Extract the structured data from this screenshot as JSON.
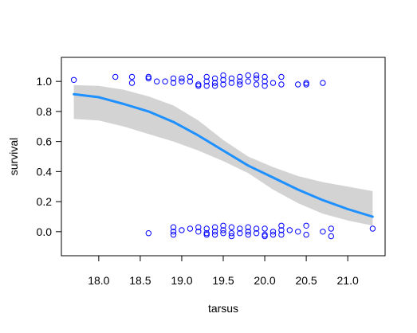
{
  "chart_data": {
    "type": "scatter",
    "xlabel": "tarsus",
    "ylabel": "survival",
    "xlim": [
      17.55,
      21.45
    ],
    "ylim": [
      -0.16,
      1.16
    ],
    "x_ticks": [
      18.0,
      18.5,
      19.0,
      19.5,
      20.0,
      20.5,
      21.0
    ],
    "x_tick_labels": [
      "18.0",
      "18.5",
      "19.0",
      "19.5",
      "20.0",
      "20.5",
      "21.0"
    ],
    "y_ticks": [
      0.0,
      0.2,
      0.4,
      0.6,
      0.8,
      1.0
    ],
    "y_tick_labels": [
      "0.0",
      "0.2",
      "0.4",
      "0.6",
      "0.8",
      "1.0"
    ],
    "grid": false,
    "colors": {
      "points": "#0000ff",
      "fit_line": "#1e90ff",
      "confidence_band": "#d3d3d3",
      "frame": "#000000"
    },
    "series": [
      {
        "kind": "points",
        "points": [
          {
            "x": 17.7,
            "y": 1.01
          },
          {
            "x": 18.2,
            "y": 1.03
          },
          {
            "x": 18.4,
            "y": 1.03
          },
          {
            "x": 18.4,
            "y": 0.99
          },
          {
            "x": 18.6,
            "y": 1.03
          },
          {
            "x": 18.6,
            "y": 1.02
          },
          {
            "x": 18.7,
            "y": 1.0
          },
          {
            "x": 18.8,
            "y": 1.0
          },
          {
            "x": 18.9,
            "y": 1.02
          },
          {
            "x": 18.9,
            "y": 0.99
          },
          {
            "x": 19.0,
            "y": 1.02
          },
          {
            "x": 19.0,
            "y": 1.0
          },
          {
            "x": 19.1,
            "y": 1.03
          },
          {
            "x": 19.1,
            "y": 1.0
          },
          {
            "x": 19.2,
            "y": 0.98
          },
          {
            "x": 19.2,
            "y": 0.97
          },
          {
            "x": 19.3,
            "y": 1.03
          },
          {
            "x": 19.3,
            "y": 1.0
          },
          {
            "x": 19.3,
            "y": 0.97
          },
          {
            "x": 19.4,
            "y": 1.02
          },
          {
            "x": 19.4,
            "y": 0.99
          },
          {
            "x": 19.4,
            "y": 0.97
          },
          {
            "x": 19.5,
            "y": 1.04
          },
          {
            "x": 19.5,
            "y": 1.01
          },
          {
            "x": 19.5,
            "y": 0.98
          },
          {
            "x": 19.6,
            "y": 1.02
          },
          {
            "x": 19.6,
            "y": 0.99
          },
          {
            "x": 19.7,
            "y": 1.03
          },
          {
            "x": 19.7,
            "y": 1.0
          },
          {
            "x": 19.7,
            "y": 0.98
          },
          {
            "x": 19.8,
            "y": 1.04
          },
          {
            "x": 19.8,
            "y": 1.0
          },
          {
            "x": 19.9,
            "y": 1.04
          },
          {
            "x": 19.9,
            "y": 1.02
          },
          {
            "x": 19.9,
            "y": 0.98
          },
          {
            "x": 20.0,
            "y": 1.03
          },
          {
            "x": 20.0,
            "y": 1.0
          },
          {
            "x": 20.0,
            "y": 0.97
          },
          {
            "x": 20.1,
            "y": 0.99
          },
          {
            "x": 20.2,
            "y": 1.03
          },
          {
            "x": 20.2,
            "y": 0.98
          },
          {
            "x": 20.4,
            "y": 0.98
          },
          {
            "x": 20.5,
            "y": 0.99
          },
          {
            "x": 20.5,
            "y": 0.98
          },
          {
            "x": 20.7,
            "y": 0.99
          },
          {
            "x": 18.6,
            "y": -0.01
          },
          {
            "x": 18.9,
            "y": 0.03
          },
          {
            "x": 18.9,
            "y": 0.0
          },
          {
            "x": 18.9,
            "y": -0.02
          },
          {
            "x": 19.0,
            "y": 0.01
          },
          {
            "x": 19.1,
            "y": 0.02
          },
          {
            "x": 19.2,
            "y": 0.03
          },
          {
            "x": 19.2,
            "y": 0.0
          },
          {
            "x": 19.3,
            "y": 0.02
          },
          {
            "x": 19.3,
            "y": -0.01
          },
          {
            "x": 19.3,
            "y": -0.02
          },
          {
            "x": 19.4,
            "y": 0.03
          },
          {
            "x": 19.4,
            "y": 0.0
          },
          {
            "x": 19.4,
            "y": -0.02
          },
          {
            "x": 19.5,
            "y": 0.04
          },
          {
            "x": 19.5,
            "y": 0.01
          },
          {
            "x": 19.5,
            "y": -0.01
          },
          {
            "x": 19.6,
            "y": 0.03
          },
          {
            "x": 19.6,
            "y": -0.01
          },
          {
            "x": 19.6,
            "y": -0.03
          },
          {
            "x": 19.7,
            "y": 0.02
          },
          {
            "x": 19.7,
            "y": -0.01
          },
          {
            "x": 19.8,
            "y": 0.03
          },
          {
            "x": 19.8,
            "y": 0.0
          },
          {
            "x": 19.8,
            "y": -0.02
          },
          {
            "x": 19.9,
            "y": 0.02
          },
          {
            "x": 19.9,
            "y": -0.01
          },
          {
            "x": 20.0,
            "y": 0.02
          },
          {
            "x": 20.0,
            "y": -0.02
          },
          {
            "x": 20.0,
            "y": -0.03
          },
          {
            "x": 20.1,
            "y": 0.0
          },
          {
            "x": 20.1,
            "y": -0.02
          },
          {
            "x": 20.2,
            "y": 0.04
          },
          {
            "x": 20.2,
            "y": 0.01
          },
          {
            "x": 20.2,
            "y": -0.02
          },
          {
            "x": 20.3,
            "y": 0.01
          },
          {
            "x": 20.4,
            "y": 0.0
          },
          {
            "x": 20.5,
            "y": 0.04
          },
          {
            "x": 20.5,
            "y": -0.02
          },
          {
            "x": 20.7,
            "y": 0.0
          },
          {
            "x": 20.8,
            "y": 0.02
          },
          {
            "x": 20.8,
            "y": -0.03
          },
          {
            "x": 21.3,
            "y": 0.02
          }
        ]
      },
      {
        "kind": "fit",
        "x": [
          17.7,
          18.0,
          18.3,
          18.6,
          18.9,
          19.2,
          19.5,
          19.8,
          20.1,
          20.4,
          20.7,
          21.0,
          21.3
        ],
        "y": [
          0.915,
          0.895,
          0.85,
          0.8,
          0.73,
          0.64,
          0.54,
          0.44,
          0.36,
          0.28,
          0.21,
          0.15,
          0.1
        ],
        "lower": [
          0.75,
          0.74,
          0.7,
          0.65,
          0.6,
          0.54,
          0.47,
          0.39,
          0.28,
          0.19,
          0.12,
          0.075,
          0.04
        ],
        "upper": [
          0.975,
          0.97,
          0.945,
          0.9,
          0.84,
          0.74,
          0.61,
          0.5,
          0.43,
          0.37,
          0.33,
          0.3,
          0.27
        ]
      }
    ]
  }
}
